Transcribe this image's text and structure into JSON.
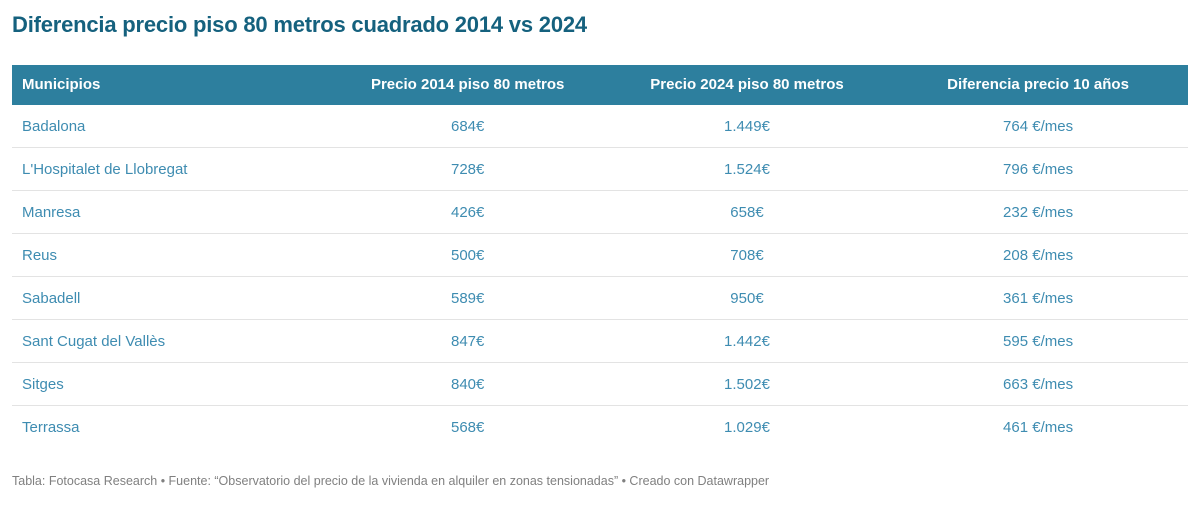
{
  "title": "Diferencia precio piso 80 metros cuadrado 2014 vs 2024",
  "chart_data": {
    "type": "table",
    "title": "Diferencia precio piso 80 metros cuadrado 2014 vs 2024",
    "columns": [
      "Municipios",
      "Precio 2014 piso 80 metros",
      "Precio 2024 piso 80 metros",
      "Diferencia precio 10 años"
    ],
    "rows": [
      [
        "Badalona",
        "684€",
        "1.449€",
        "764 €/mes"
      ],
      [
        "L'Hospitalet de Llobregat",
        "728€",
        "1.524€",
        "796 €/mes"
      ],
      [
        "Manresa",
        "426€",
        "658€",
        "232 €/mes"
      ],
      [
        "Reus",
        "500€",
        "708€",
        "208 €/mes"
      ],
      [
        "Sabadell",
        "589€",
        "950€",
        "361 €/mes"
      ],
      [
        "Sant Cugat del Vallès",
        "847€",
        "1.442€",
        "595 €/mes"
      ],
      [
        "Sitges",
        "840€",
        "1.502€",
        "663 €/mes"
      ],
      [
        "Terrassa",
        "568€",
        "1.029€",
        "461 €/mes"
      ]
    ],
    "numeric_values": {
      "precio_2014": [
        684,
        728,
        426,
        500,
        589,
        847,
        840,
        568
      ],
      "precio_2024": [
        1449,
        1524,
        658,
        708,
        950,
        1442,
        1502,
        1029
      ],
      "diferencia_eur_mes": [
        764,
        796,
        232,
        208,
        361,
        595,
        663,
        461
      ]
    }
  },
  "footer": {
    "text": "Tabla: Fotocasa Research • Fuente: “Observatorio del precio de la vivienda en alquiler en zonas tensionadas” • Creado con Datawrapper"
  },
  "colors": {
    "header_background": "#2d7f9e",
    "title_text": "#15617e",
    "cell_text": "#3e8cb1",
    "footer_text": "#808080",
    "row_border": "#e3e3e3",
    "page_background": "#ffffff"
  }
}
